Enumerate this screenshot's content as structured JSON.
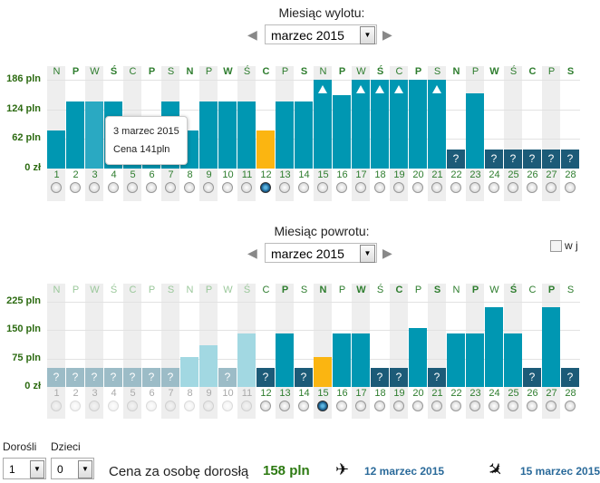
{
  "departure": {
    "title": "Miesiąc wylotu:",
    "month": "marzec 2015",
    "y_ticks": [
      "186 pln",
      "124 pln",
      "62 pln",
      "0 zł"
    ],
    "y_max": 186,
    "day_names": [
      "N",
      "P",
      "W",
      "Ś",
      "C",
      "P",
      "S",
      "N",
      "P",
      "W",
      "Ś",
      "C",
      "P",
      "S",
      "N",
      "P",
      "W",
      "Ś",
      "C",
      "P",
      "S",
      "N",
      "P",
      "W",
      "Ś",
      "C",
      "P",
      "S"
    ],
    "days": [
      "1",
      "2",
      "3",
      "4",
      "5",
      "6",
      "7",
      "8",
      "9",
      "10",
      "11",
      "12",
      "13",
      "14",
      "15",
      "16",
      "17",
      "18",
      "19",
      "20",
      "21",
      "22",
      "23",
      "24",
      "25",
      "26",
      "27",
      "28"
    ],
    "prices": [
      79,
      141,
      141,
      141,
      79,
      111,
      141,
      79,
      141,
      141,
      141,
      79,
      141,
      141,
      186,
      154,
      186,
      186,
      186,
      186,
      186,
      null,
      158,
      null,
      null,
      null,
      null,
      null
    ],
    "over_max": [
      15,
      17,
      18,
      19,
      21
    ],
    "selected_day": 12,
    "hovered_day": 3,
    "tooltip": {
      "date": "3 marzec 2015",
      "price": "Cena 141pln"
    }
  },
  "return": {
    "title": "Miesiąc powrotu:",
    "month": "marzec 2015",
    "checkbox_label": "w j",
    "y_ticks": [
      "225 pln",
      "150 pln",
      "75 pln",
      "0 zł"
    ],
    "y_max": 225,
    "day_names": [
      "N",
      "P",
      "W",
      "Ś",
      "C",
      "P",
      "S",
      "N",
      "P",
      "W",
      "Ś",
      "C",
      "P",
      "S",
      "N",
      "P",
      "W",
      "Ś",
      "C",
      "P",
      "S",
      "N",
      "P",
      "W",
      "Ś",
      "C",
      "P",
      "S"
    ],
    "days": [
      "1",
      "2",
      "3",
      "4",
      "5",
      "6",
      "7",
      "8",
      "9",
      "10",
      "11",
      "12",
      "13",
      "14",
      "15",
      "16",
      "17",
      "18",
      "19",
      "20",
      "21",
      "22",
      "23",
      "24",
      "25",
      "26",
      "27",
      "28"
    ],
    "prices": [
      null,
      null,
      null,
      null,
      null,
      null,
      null,
      80,
      111,
      null,
      141,
      null,
      141,
      null,
      80,
      141,
      141,
      null,
      null,
      156,
      null,
      141,
      141,
      211,
      141,
      null,
      211,
      null
    ],
    "disabled_until": 11,
    "selected_day": 15
  },
  "footer": {
    "adults_label": "Dorośli",
    "children_label": "Dzieci",
    "adults_value": "1",
    "children_value": "0",
    "price_label": "Cena za osobę dorosłą",
    "price_value": "158 pln",
    "depart_date": "12 marzec 2015",
    "return_date": "15 marzec 2015"
  },
  "colors": {
    "bar": "#0097b2",
    "bar_hover": "#2aa9c2",
    "bar_unknown": "#1c5b78",
    "bar_selected": "#fbb511",
    "bar_dim": "#a2d8e2",
    "bar_dim_unknown": "#9cbcc7",
    "price_green": "#2d7a12",
    "link_blue": "#2a6a9a"
  }
}
